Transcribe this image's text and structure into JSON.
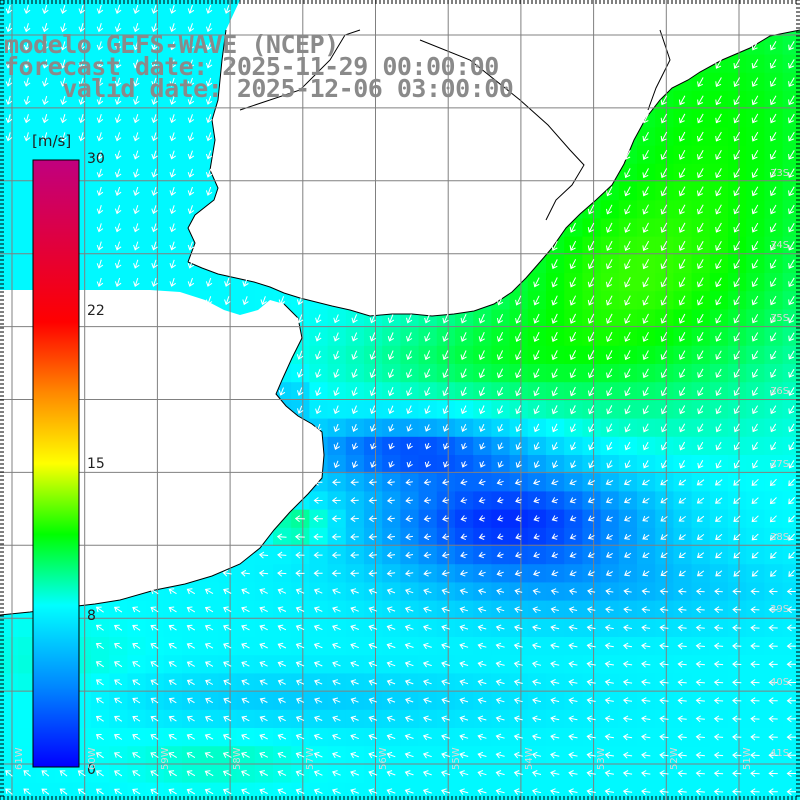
{
  "header": {
    "line1": "modelo GEFS-WAVE (NCEP)",
    "line2": "forecast date: 2025-11-29 00:00:00",
    "line3": "    valid date: 2025-12-06 03:00:00"
  },
  "colorbar": {
    "unit": "[m/s]",
    "ticks": [
      {
        "label": "30",
        "value": 30
      },
      {
        "label": "22",
        "value": 22
      },
      {
        "label": "15",
        "value": 15
      },
      {
        "label": "8",
        "value": 8
      },
      {
        "label": "0",
        "value": 0
      }
    ],
    "scale": [
      {
        "value": 0,
        "color": "#0000ff"
      },
      {
        "value": 4,
        "color": "#0088ff"
      },
      {
        "value": 8,
        "color": "#00ffff"
      },
      {
        "value": 11.5,
        "color": "#00ff00"
      },
      {
        "value": 15,
        "color": "#ffff00"
      },
      {
        "value": 18.5,
        "color": "#ff8800"
      },
      {
        "value": 22,
        "color": "#ff0000"
      },
      {
        "value": 30,
        "color": "#c0007f"
      }
    ]
  },
  "map": {
    "land_color": "#ffffff",
    "grid_color": "#808080",
    "coast_color": "#000000",
    "arrow_color": "#ffffff",
    "lat_labels": [
      "33S",
      "34S",
      "35S",
      "36S",
      "37S",
      "38S",
      "39S",
      "40S",
      "41S"
    ],
    "lon_labels": [
      "61W",
      "60W",
      "59W",
      "58W",
      "57W",
      "56W",
      "55W",
      "54W",
      "53W",
      "52W",
      "51W"
    ]
  }
}
